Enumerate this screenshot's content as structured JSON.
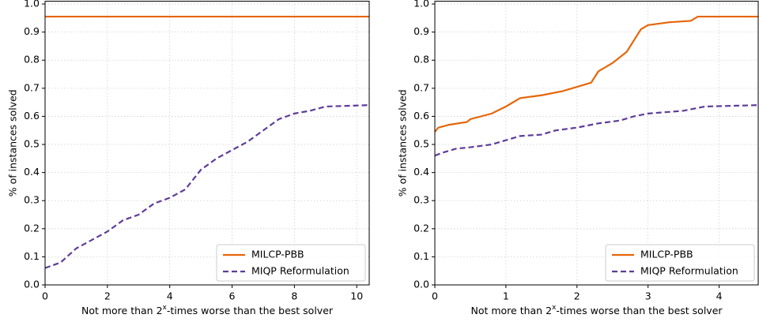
{
  "chart_data": [
    {
      "type": "line",
      "ylabel": "% of instances solved",
      "xlabel": [
        "Not more than 2",
        "x",
        "-times worse than the best solver"
      ],
      "xlim": [
        0,
        10.4
      ],
      "ylim": [
        0,
        1.01
      ],
      "xticks": [
        0,
        2,
        4,
        6,
        8,
        10
      ],
      "yticks": [
        {
          "value": 0,
          "label": "0.0"
        },
        0.1,
        0.2,
        0.3,
        0.4,
        0.5,
        0.6,
        0.7,
        0.8,
        0.9,
        {
          "value": 1,
          "label": "1.0"
        }
      ],
      "grid": true,
      "legend": "lower right",
      "series": [
        {
          "name": "MILCP-PBB",
          "color": "#e6660a",
          "linestyle": "solid",
          "x": [
            0,
            10.4
          ],
          "values": [
            0.955,
            0.955
          ]
        },
        {
          "name": "MIQP Reformulation",
          "color": "#5e3c99",
          "linestyle": "dashed",
          "x": [
            0,
            0.5,
            1,
            1.5,
            2,
            2.5,
            3,
            3.5,
            4,
            4.5,
            5,
            5.5,
            6,
            6.5,
            7,
            7.5,
            8,
            8.5,
            9,
            10.4
          ],
          "values": [
            0.06,
            0.08,
            0.13,
            0.16,
            0.19,
            0.23,
            0.25,
            0.29,
            0.31,
            0.34,
            0.41,
            0.45,
            0.48,
            0.51,
            0.55,
            0.59,
            0.61,
            0.62,
            0.635,
            0.64
          ]
        }
      ]
    },
    {
      "type": "line",
      "ylabel": "% of instances solved",
      "xlabel": [
        "Not more than 2",
        "x",
        "-times worse than the best solver"
      ],
      "xlim": [
        0,
        4.55
      ],
      "ylim": [
        0,
        1.01
      ],
      "xticks": [
        0,
        1,
        2,
        3,
        4
      ],
      "yticks": [
        {
          "value": 0,
          "label": "0.0"
        },
        0.1,
        0.2,
        0.3,
        0.4,
        0.5,
        0.6,
        0.7,
        0.8,
        0.9,
        {
          "value": 1,
          "label": "1.0"
        }
      ],
      "grid": true,
      "legend": "lower right",
      "series": [
        {
          "name": "MILCP-PBB",
          "color": "#e6660a",
          "linestyle": "solid",
          "x": [
            0,
            0.05,
            0.2,
            0.45,
            0.5,
            0.8,
            1,
            1.2,
            1.5,
            1.8,
            2,
            2.2,
            2.3,
            2.5,
            2.7,
            2.8,
            2.9,
            3,
            3.3,
            3.6,
            3.7,
            4.55
          ],
          "values": [
            0.545,
            0.56,
            0.57,
            0.58,
            0.59,
            0.61,
            0.635,
            0.665,
            0.675,
            0.69,
            0.705,
            0.72,
            0.76,
            0.79,
            0.83,
            0.87,
            0.91,
            0.925,
            0.935,
            0.94,
            0.955,
            0.955
          ]
        },
        {
          "name": "MIQP Reformulation",
          "color": "#5e3c99",
          "linestyle": "dashed",
          "x": [
            0,
            0.1,
            0.3,
            0.5,
            0.8,
            1,
            1.2,
            1.5,
            1.7,
            2,
            2.3,
            2.6,
            2.8,
            3,
            3.5,
            3.8,
            4.55
          ],
          "values": [
            0.46,
            0.47,
            0.485,
            0.49,
            0.5,
            0.515,
            0.53,
            0.535,
            0.55,
            0.56,
            0.575,
            0.585,
            0.6,
            0.61,
            0.62,
            0.635,
            0.64
          ]
        }
      ]
    }
  ]
}
